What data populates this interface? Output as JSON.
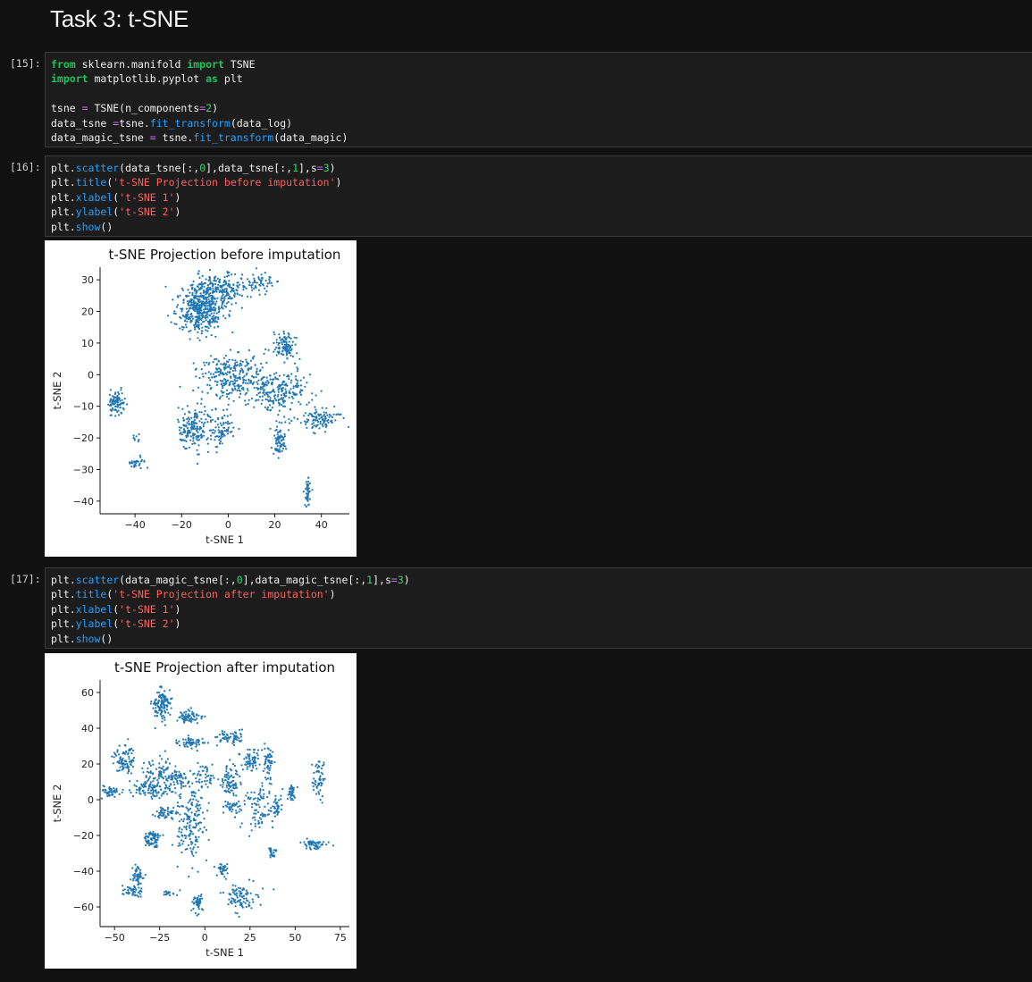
{
  "heading": "Task 3: t-SNE",
  "cells": [
    {
      "prompt": "[15]:",
      "lines": [
        [
          {
            "t": "from",
            "c": "kw"
          },
          {
            "t": " sklearn.manifold ",
            "c": ""
          },
          {
            "t": "import",
            "c": "kw"
          },
          {
            "t": " TSNE",
            "c": ""
          }
        ],
        [
          {
            "t": "import",
            "c": "kw"
          },
          {
            "t": " matplotlib.pyplot ",
            "c": ""
          },
          {
            "t": "as",
            "c": "kw"
          },
          {
            "t": " plt",
            "c": ""
          }
        ],
        [],
        [
          {
            "t": "tsne ",
            "c": ""
          },
          {
            "t": "=",
            "c": "op"
          },
          {
            "t": " TSNE(n_components",
            "c": ""
          },
          {
            "t": "=",
            "c": "op"
          },
          {
            "t": "2",
            "c": "num"
          },
          {
            "t": ")",
            "c": ""
          }
        ],
        [
          {
            "t": "data_tsne ",
            "c": ""
          },
          {
            "t": "=",
            "c": "op"
          },
          {
            "t": "tsne.",
            "c": ""
          },
          {
            "t": "fit_transform",
            "c": "fn"
          },
          {
            "t": "(data_log)",
            "c": ""
          }
        ],
        [
          {
            "t": "data_magic_tsne ",
            "c": ""
          },
          {
            "t": "=",
            "c": "op"
          },
          {
            "t": " tsne.",
            "c": ""
          },
          {
            "t": "fit_transform",
            "c": "fn"
          },
          {
            "t": "(data_magic)",
            "c": ""
          }
        ]
      ]
    },
    {
      "prompt": "[16]:",
      "lines": [
        [
          {
            "t": "plt.",
            "c": ""
          },
          {
            "t": "scatter",
            "c": "fn"
          },
          {
            "t": "(data_tsne[:,",
            "c": ""
          },
          {
            "t": "0",
            "c": "num"
          },
          {
            "t": "],data_tsne[:,",
            "c": ""
          },
          {
            "t": "1",
            "c": "num"
          },
          {
            "t": "],s",
            "c": ""
          },
          {
            "t": "=",
            "c": "op"
          },
          {
            "t": "3",
            "c": "num"
          },
          {
            "t": ")",
            "c": ""
          }
        ],
        [
          {
            "t": "plt.",
            "c": ""
          },
          {
            "t": "title",
            "c": "fn"
          },
          {
            "t": "(",
            "c": ""
          },
          {
            "t": "'t-SNE Projection before imputation'",
            "c": "str"
          },
          {
            "t": ")",
            "c": ""
          }
        ],
        [
          {
            "t": "plt.",
            "c": ""
          },
          {
            "t": "xlabel",
            "c": "fn"
          },
          {
            "t": "(",
            "c": ""
          },
          {
            "t": "'t-SNE 1'",
            "c": "str"
          },
          {
            "t": ")",
            "c": ""
          }
        ],
        [
          {
            "t": "plt.",
            "c": ""
          },
          {
            "t": "ylabel",
            "c": "fn"
          },
          {
            "t": "(",
            "c": ""
          },
          {
            "t": "'t-SNE 2'",
            "c": "str"
          },
          {
            "t": ")",
            "c": ""
          }
        ],
        [
          {
            "t": "plt.",
            "c": ""
          },
          {
            "t": "show",
            "c": "fn"
          },
          {
            "t": "()",
            "c": ""
          }
        ]
      ]
    },
    {
      "prompt": "[17]:",
      "lines": [
        [
          {
            "t": "plt.",
            "c": ""
          },
          {
            "t": "scatter",
            "c": "fn"
          },
          {
            "t": "(data_magic_tsne[:,",
            "c": ""
          },
          {
            "t": "0",
            "c": "num"
          },
          {
            "t": "],data_magic_tsne[:,",
            "c": ""
          },
          {
            "t": "1",
            "c": "num"
          },
          {
            "t": "],s",
            "c": ""
          },
          {
            "t": "=",
            "c": "op"
          },
          {
            "t": "3",
            "c": "num"
          },
          {
            "t": ")",
            "c": ""
          }
        ],
        [
          {
            "t": "plt.",
            "c": ""
          },
          {
            "t": "title",
            "c": "fn"
          },
          {
            "t": "(",
            "c": ""
          },
          {
            "t": "'t-SNE Projection after imputation'",
            "c": "str"
          },
          {
            "t": ")",
            "c": ""
          }
        ],
        [
          {
            "t": "plt.",
            "c": ""
          },
          {
            "t": "xlabel",
            "c": "fn"
          },
          {
            "t": "(",
            "c": ""
          },
          {
            "t": "'t-SNE 1'",
            "c": "str"
          },
          {
            "t": ")",
            "c": ""
          }
        ],
        [
          {
            "t": "plt.",
            "c": ""
          },
          {
            "t": "ylabel",
            "c": "fn"
          },
          {
            "t": "(",
            "c": ""
          },
          {
            "t": "'t-SNE 2'",
            "c": "str"
          },
          {
            "t": ")",
            "c": ""
          }
        ],
        [
          {
            "t": "plt.",
            "c": ""
          },
          {
            "t": "show",
            "c": "fn"
          },
          {
            "t": "()",
            "c": ""
          }
        ]
      ]
    }
  ],
  "colors": {
    "background": "#111111",
    "cell": "#1c1c1c",
    "keyword": "#1ec45a",
    "function": "#27a0ff",
    "operator": "#c970f0",
    "number": "#3dd26c",
    "string": "#ff5f5f",
    "point": "#1f77b4"
  },
  "chart_data": [
    {
      "type": "scatter",
      "title": "t-SNE Projection before imputation",
      "xlabel": "t-SNE 1",
      "ylabel": "t-SNE 2",
      "xlim": [
        -55,
        52
      ],
      "ylim": [
        -44,
        34
      ],
      "xticks": [
        -40,
        -20,
        0,
        20,
        40
      ],
      "yticks": [
        30,
        20,
        10,
        0,
        -10,
        -20,
        -30,
        -40
      ],
      "xtick_labels": [
        "−40",
        "−20",
        "0",
        "20",
        "40"
      ],
      "ytick_labels": [
        "30",
        "20",
        "10",
        "0",
        "−10",
        "−20",
        "−30",
        "−40"
      ],
      "grid": false,
      "clusters": [
        {
          "x": -12,
          "y": 21,
          "sx": 6,
          "sy": 5,
          "n": 480
        },
        {
          "x": -2,
          "y": 27,
          "sx": 6,
          "sy": 3,
          "n": 160
        },
        {
          "x": 12,
          "y": 29,
          "sx": 5,
          "sy": 2.5,
          "n": 60
        },
        {
          "x": 25,
          "y": 9,
          "sx": 3,
          "sy": 3,
          "n": 110
        },
        {
          "x": 0,
          "y": 0,
          "sx": 9,
          "sy": 5,
          "n": 260
        },
        {
          "x": 22,
          "y": -5,
          "sx": 9,
          "sy": 4,
          "n": 230
        },
        {
          "x": 40,
          "y": -14,
          "sx": 5,
          "sy": 2.2,
          "n": 100
        },
        {
          "x": -15,
          "y": -17,
          "sx": 4,
          "sy": 4,
          "n": 170
        },
        {
          "x": -4,
          "y": -17,
          "sx": 4,
          "sy": 4,
          "n": 90
        },
        {
          "x": 22,
          "y": -21,
          "sx": 1.8,
          "sy": 3,
          "n": 75
        },
        {
          "x": -48,
          "y": -9,
          "sx": 2.2,
          "sy": 2.5,
          "n": 95
        },
        {
          "x": -39,
          "y": -28,
          "sx": 2,
          "sy": 1.2,
          "n": 32
        },
        {
          "x": 34,
          "y": -37,
          "sx": 0.8,
          "sy": 3,
          "n": 42
        },
        {
          "x": -40,
          "y": -20,
          "sx": 1,
          "sy": 1,
          "n": 8
        }
      ]
    },
    {
      "type": "scatter",
      "title": "t-SNE Projection after imputation",
      "xlabel": "t-SNE 1",
      "ylabel": "t-SNE 2",
      "xlim": [
        -58,
        80
      ],
      "ylim": [
        -71,
        67
      ],
      "xticks": [
        -50,
        -25,
        0,
        25,
        50,
        75
      ],
      "yticks": [
        60,
        40,
        20,
        0,
        -20,
        -40,
        -60
      ],
      "xtick_labels": [
        "−50",
        "−25",
        "0",
        "25",
        "50",
        "75"
      ],
      "ytick_labels": [
        "60",
        "40",
        "20",
        "0",
        "−20",
        "−40",
        "−60"
      ],
      "grid": false,
      "clusters": [
        {
          "x": -24,
          "y": 53,
          "sx": 3,
          "sy": 5,
          "n": 120
        },
        {
          "x": -9,
          "y": 46,
          "sx": 4,
          "sy": 2,
          "n": 70
        },
        {
          "x": 13,
          "y": 35,
          "sx": 6,
          "sy": 2,
          "n": 60
        },
        {
          "x": -8,
          "y": 32,
          "sx": 6,
          "sy": 2,
          "n": 60
        },
        {
          "x": -44,
          "y": 22,
          "sx": 4,
          "sy": 5,
          "n": 90
        },
        {
          "x": -25,
          "y": 16,
          "sx": 6,
          "sy": 5,
          "n": 80
        },
        {
          "x": -14,
          "y": 12,
          "sx": 4,
          "sy": 3,
          "n": 50
        },
        {
          "x": 0,
          "y": 13,
          "sx": 3,
          "sy": 4,
          "n": 40
        },
        {
          "x": -30,
          "y": 6,
          "sx": 8,
          "sy": 3,
          "n": 100
        },
        {
          "x": -52,
          "y": 5,
          "sx": 3,
          "sy": 2,
          "n": 50
        },
        {
          "x": -8,
          "y": -12,
          "sx": 5,
          "sy": 14,
          "n": 180
        },
        {
          "x": -22,
          "y": -8,
          "sx": 4,
          "sy": 2,
          "n": 50
        },
        {
          "x": -29,
          "y": -22,
          "sx": 3,
          "sy": 3,
          "n": 80
        },
        {
          "x": 14,
          "y": 10,
          "sx": 3,
          "sy": 6,
          "n": 80
        },
        {
          "x": 16,
          "y": -5,
          "sx": 3,
          "sy": 3,
          "n": 40
        },
        {
          "x": 31,
          "y": -3,
          "sx": 5,
          "sy": 10,
          "n": 90
        },
        {
          "x": 25,
          "y": 22,
          "sx": 3,
          "sy": 4,
          "n": 60
        },
        {
          "x": 35,
          "y": 21,
          "sx": 2,
          "sy": 6,
          "n": 50
        },
        {
          "x": 40,
          "y": -3,
          "sx": 2,
          "sy": 4,
          "n": 30
        },
        {
          "x": 48,
          "y": 4,
          "sx": 1.5,
          "sy": 4,
          "n": 35
        },
        {
          "x": 63,
          "y": 13,
          "sx": 2,
          "sy": 8,
          "n": 60
        },
        {
          "x": 60,
          "y": -25,
          "sx": 5,
          "sy": 2,
          "n": 50
        },
        {
          "x": 37,
          "y": -30,
          "sx": 1.5,
          "sy": 2,
          "n": 25
        },
        {
          "x": -37,
          "y": -42,
          "sx": 2,
          "sy": 4,
          "n": 50
        },
        {
          "x": -40,
          "y": -51,
          "sx": 3,
          "sy": 2,
          "n": 50
        },
        {
          "x": -20,
          "y": -53,
          "sx": 2,
          "sy": 1,
          "n": 15
        },
        {
          "x": -4,
          "y": -58,
          "sx": 2,
          "sy": 4,
          "n": 50
        },
        {
          "x": 10,
          "y": -39,
          "sx": 2,
          "sy": 2,
          "n": 35
        },
        {
          "x": 20,
          "y": -54,
          "sx": 6,
          "sy": 5,
          "n": 90
        }
      ]
    }
  ]
}
